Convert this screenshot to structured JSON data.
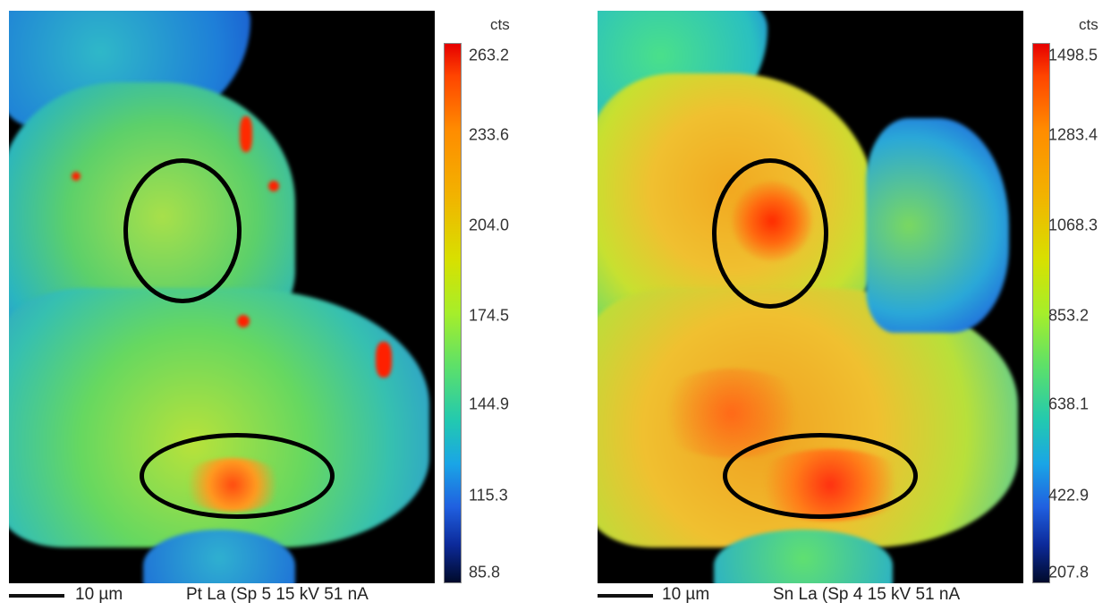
{
  "panels": [
    {
      "unit": "cts",
      "colorbar_ticks": [
        "263.2",
        "233.6",
        "204.0",
        "174.5",
        "144.9",
        "115.3",
        "85.8"
      ],
      "scale_label": "10 µm",
      "caption": "Pt La (Sp 5 15 kV 51 nA"
    },
    {
      "unit": "cts",
      "colorbar_ticks": [
        "1498.5",
        "1283.4",
        "1068.3",
        "853.2",
        "638.1",
        "422.9",
        "207.8"
      ],
      "scale_label": "10 µm",
      "caption": "Sn La (Sp 4 15 kV 51 nA"
    }
  ],
  "colors": {
    "background": "#000000",
    "low": "#0a2aa0",
    "mid": "#5ce06a",
    "high": "#e60000"
  }
}
